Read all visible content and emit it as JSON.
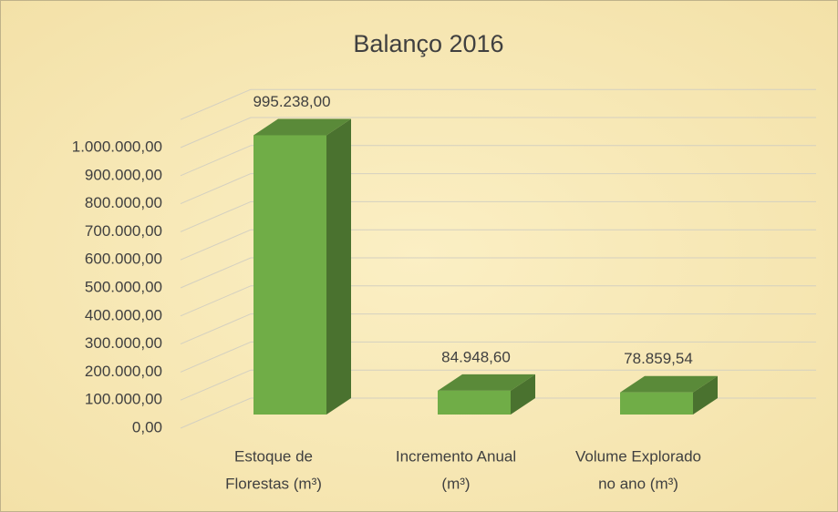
{
  "chart_data": {
    "type": "bar3d",
    "title": "Balanço 2016",
    "categories": [
      [
        "Estoque de",
        "Florestas (m³)"
      ],
      [
        "Incremento Anual",
        "(m³)"
      ],
      [
        "Volume Explorado",
        "no ano (m³)"
      ]
    ],
    "values": [
      995238,
      84948.6,
      78859.54
    ],
    "value_labels": [
      "995.238,00",
      "84.948,60",
      "78.859,54"
    ],
    "color": "#70ad47",
    "ylim": [
      0,
      1100000
    ],
    "yticks": [
      {
        "value": 0,
        "label": "0,00"
      },
      {
        "value": 100000,
        "label": "100.000,00"
      },
      {
        "value": 200000,
        "label": "200.000,00"
      },
      {
        "value": 300000,
        "label": "300.000,00"
      },
      {
        "value": 400000,
        "label": "400.000,00"
      },
      {
        "value": 500000,
        "label": "500.000,00"
      },
      {
        "value": 600000,
        "label": "600.000,00"
      },
      {
        "value": 700000,
        "label": "700.000,00"
      },
      {
        "value": 800000,
        "label": "800.000,00"
      },
      {
        "value": 900000,
        "label": "900.000,00"
      },
      {
        "value": 1000000,
        "label": "1.000.000,00"
      }
    ],
    "grid": true
  }
}
